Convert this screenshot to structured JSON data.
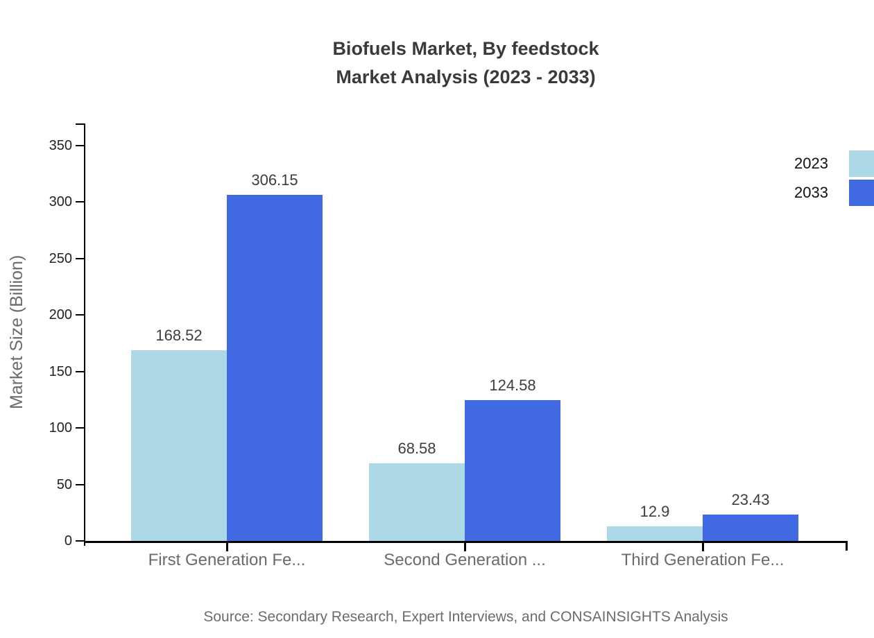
{
  "title": {
    "line1": "Biofuels Market, By feedstock",
    "line2": "Market Analysis (2023 - 2033)"
  },
  "chart_data": {
    "type": "bar",
    "categories": [
      "First Generation Fe...",
      "Second Generation ...",
      "Third Generation Fe..."
    ],
    "series": [
      {
        "name": "2023",
        "color": "#ADD8E6",
        "values": [
          168.52,
          68.58,
          12.9
        ]
      },
      {
        "name": "2033",
        "color": "#4169E1",
        "values": [
          306.15,
          124.58,
          23.43
        ]
      }
    ],
    "title": "Biofuels Market, By feedstock Market Analysis (2023 - 2033)",
    "xlabel": "",
    "ylabel": "Market Size (Billion)",
    "ylim": [
      0,
      350
    ],
    "yticks": [
      0,
      50,
      100,
      150,
      200,
      250,
      300,
      350
    ],
    "grid": false,
    "legend_position": "top-right",
    "value_labels_shown": true
  },
  "source": "Source: Secondary Research, Expert Interviews, and CONSAINSIGHTS Analysis",
  "colors": {
    "series_2023": "#ADD8E6",
    "series_2033": "#4169E1",
    "axis": "#000000",
    "title_text": "#3a3a3a",
    "muted_text": "#6b6b6b",
    "tick_text": "#222222"
  }
}
